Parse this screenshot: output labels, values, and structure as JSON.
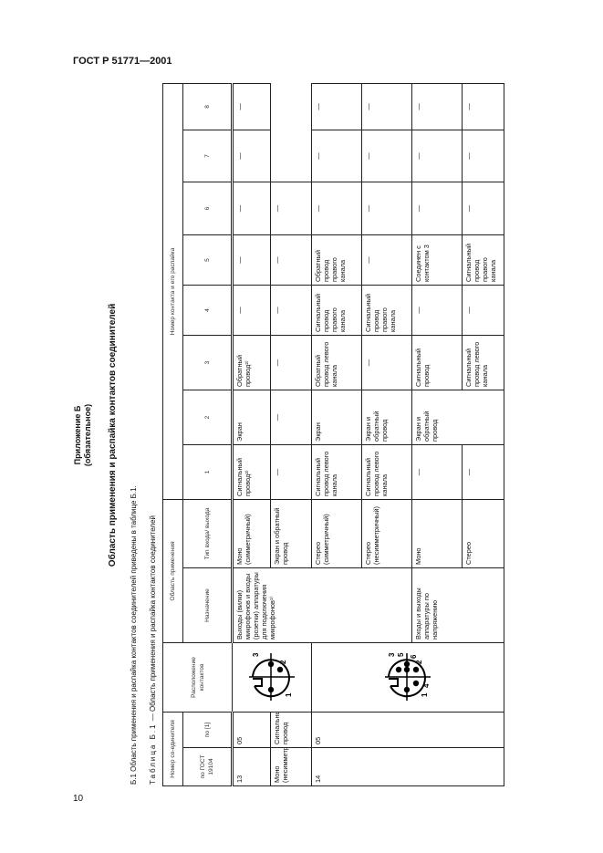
{
  "page": {
    "header": "ГОСТ Р 51771—2001",
    "number": "10"
  },
  "appendix": {
    "title": "Приложение Б",
    "status": "(обязательное)"
  },
  "section_title": "Область применения и распайка контактов соединителей",
  "paragraph": "Б.1 Область применения и распайка контактов соединителей приведены в таблице Б.1.",
  "caption": {
    "prefix": "Таблица Б.1",
    "text": " — Область применения и распайка контактов соединителей"
  },
  "table": {
    "headers": {
      "connector_number": "Номер со-единителя",
      "gost": "по ГОСТ 19104",
      "ref": "по [1]",
      "layout": "Расположение контактов",
      "application": "Область применения",
      "purpose": "Назначение",
      "io_type": "Тип входа/ выхода",
      "contacts": "Номер контакта и его распайка",
      "contact_numbers": [
        "1",
        "2",
        "3",
        "4",
        "5",
        "6",
        "7",
        "8"
      ]
    },
    "connectors": {
      "conn1": {
        "pins": [
          "1",
          "2",
          "3"
        ]
      },
      "conn2": {
        "pins": [
          "1",
          "2",
          "3",
          "4",
          "5",
          "6"
        ]
      }
    },
    "rows": [
      [
        "13",
        "05",
        "",
        "Выходы (вилки) микрофонов и входы (розетки) аппаратуры для подключения микрофонов¹⁾",
        "Моно (симметричный)",
        "Сигнальный провод²⁾",
        "Экран",
        "Обратный провод²⁾",
        "—",
        "—",
        "—",
        "—",
        "—"
      ],
      [
        "Моно (несимметричный)",
        "Сигнальный провод",
        "Экран и обратный провод",
        "—",
        "—",
        "—",
        "—",
        "—",
        "—"
      ],
      [
        "14",
        "05",
        "",
        "Стерео (симметричный)",
        "Сигнальный провод левого канала",
        "Экран",
        "Обратный провод левого канала",
        "Сигнальный провод правого канала",
        "Обратный провод правого канала",
        "—",
        "—",
        "—"
      ],
      [
        "Стерео (несимметричный)",
        "Сигнальный провод левого канала",
        "Экран и обратный провод",
        "—",
        "Сигнальный провод правого канала",
        "—",
        "—",
        "—",
        "—"
      ],
      [
        "Входы и выходы аппаратуры по напряжению",
        "Моно",
        "—",
        "Экран и обратный провод",
        "Сигнальный провод",
        "—",
        "Соединен с контактом 3",
        "—",
        "—",
        "—"
      ],
      [
        "Стерео",
        "—",
        "Сигнальный провод левого канала",
        "—",
        "Сигнальный провод правого канала",
        "—",
        "—",
        "—"
      ]
    ]
  }
}
